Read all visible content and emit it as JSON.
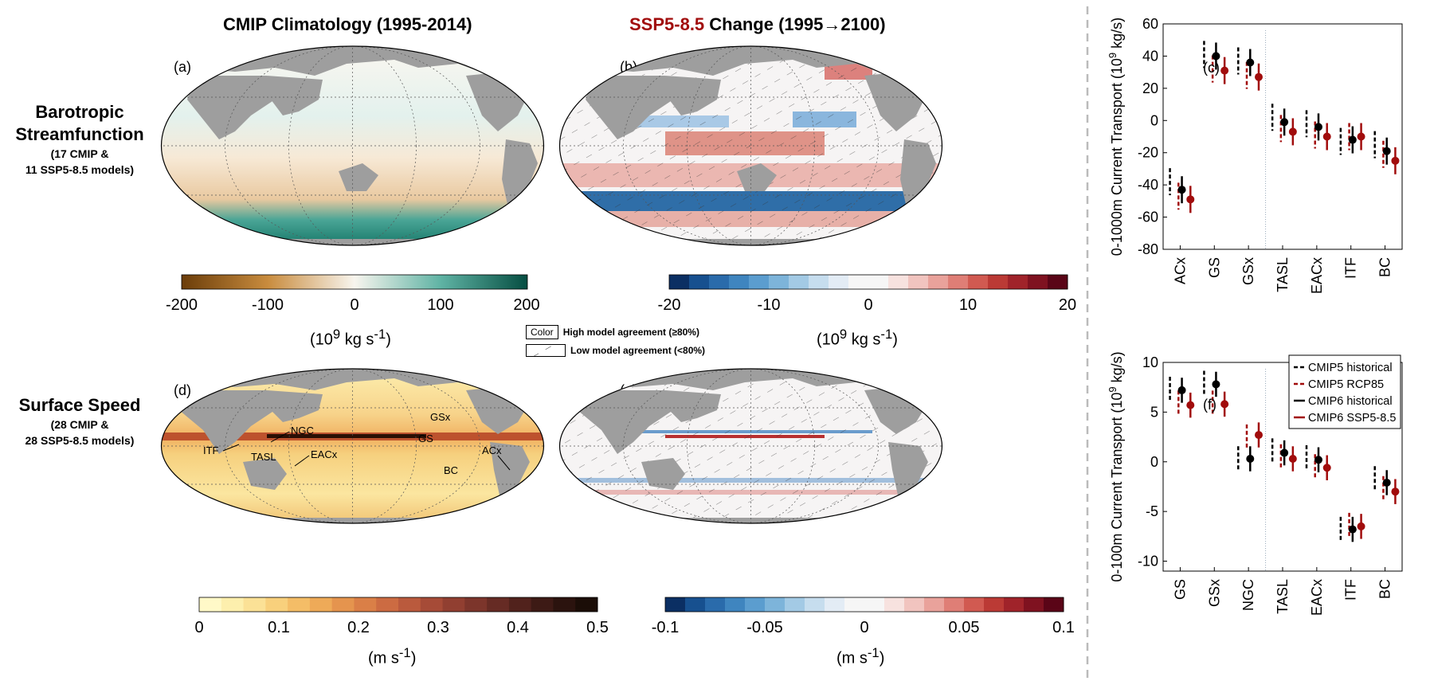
{
  "headers": {
    "col1": "CMIP Climatology (1995-2014)",
    "col2_prefix": "SSP5-8.5",
    "col2_suffix": " Change (1995→2100)"
  },
  "rows": {
    "row1": {
      "title_line1": "Barotropic",
      "title_line2": "Streamfunction",
      "sub_line1": "(17 CMIP &",
      "sub_line2": "11 SSP5-8.5 models)"
    },
    "row2": {
      "title_line1": "Surface Speed",
      "sub_line1": "(28 CMIP &",
      "sub_line2": "28 SSP5-8.5 models)"
    }
  },
  "panel_labels": {
    "a": "(a)",
    "b": "(b)",
    "c": "(c)",
    "d": "(d)",
    "e": "(e)",
    "f": "(f)"
  },
  "map_labels": {
    "gsx": "GSx",
    "gs": "GS",
    "ngc": "NGC",
    "itf": "ITF",
    "tasl": "TASL",
    "eacx": "EACx",
    "bc": "BC",
    "acx": "ACx"
  },
  "colorbars": {
    "a": {
      "ticks": [
        "-200",
        "-100",
        "0",
        "100",
        "200"
      ],
      "unit_base": "(10",
      "unit_exp1": "9",
      "unit_mid": " kg s",
      "unit_exp2": "-1",
      "unit_end": ")"
    },
    "b": {
      "ticks": [
        "-20",
        "-10",
        "0",
        "10",
        "20"
      ],
      "unit_base": "(10",
      "unit_exp1": "9",
      "unit_mid": " kg s",
      "unit_exp2": "-1",
      "unit_end": ")"
    },
    "d": {
      "ticks": [
        "0",
        "0.1",
        "0.2",
        "0.3",
        "0.4",
        "0.5"
      ],
      "unit_base": "(m s",
      "unit_exp": "-1",
      "unit_end": ")"
    },
    "e": {
      "ticks": [
        "-0.1",
        "-0.05",
        "0",
        "0.05",
        "0.1"
      ],
      "unit_base": "(m s",
      "unit_exp": "-1",
      "unit_end": ")"
    }
  },
  "agreement_legend": {
    "color_box": "Color",
    "high": "High model agreement (≥80%)",
    "low": "Low model agreement (<80%)"
  },
  "colors": {
    "historical": "#000000",
    "future": "#a10c0c",
    "land": "#9e9e9e"
  },
  "chart_data": [
    {
      "type": "scatter",
      "panel": "(c)",
      "ylabel": "0-1000m Current Transport (10^9 kg/s)",
      "ylim": [
        -80,
        60
      ],
      "yticks": [
        "60",
        "40",
        "20",
        "0",
        "-20",
        "-40",
        "-60",
        "-80"
      ],
      "categories": [
        "ACx",
        "GS",
        "GSx",
        "TASL",
        "EACx",
        "ITF",
        "BC"
      ],
      "series": [
        {
          "name": "CMIP5 historical",
          "values": [
            -38,
            41,
            37,
            2,
            -2,
            -13,
            -15
          ]
        },
        {
          "name": "CMIP5 RCP85",
          "values": [
            -47,
            32,
            28,
            -5,
            -9,
            -10,
            -21
          ]
        },
        {
          "name": "CMIP6 historical",
          "values": [
            -43,
            40,
            36,
            -1,
            -4,
            -12,
            -19
          ]
        },
        {
          "name": "CMIP6 SSP5-8.5",
          "values": [
            -49,
            31,
            27,
            -7,
            -10,
            -10,
            -25
          ]
        }
      ]
    },
    {
      "type": "scatter",
      "panel": "(f)",
      "ylabel": "0-100m Current Transport (10^9 kg/s)",
      "ylim": [
        -11,
        10
      ],
      "yticks": [
        "10",
        "5",
        "0",
        "-5",
        "-10"
      ],
      "categories": [
        "GS",
        "GSx",
        "NGC",
        "TASL",
        "EACx",
        "ITF",
        "BC"
      ],
      "series": [
        {
          "name": "CMIP5 historical",
          "values": [
            7.3,
            7.9,
            0.3,
            1.1,
            0.4,
            -6.8,
            -1.7
          ]
        },
        {
          "name": "CMIP5 RCP85",
          "values": [
            5.9,
            5.9,
            2.5,
            0.5,
            -0.5,
            -6.4,
            -2.7
          ]
        },
        {
          "name": "CMIP6 historical",
          "values": [
            7.2,
            7.8,
            0.3,
            0.9,
            0.2,
            -6.8,
            -2.1
          ]
        },
        {
          "name": "CMIP6 SSP5-8.5",
          "values": [
            5.7,
            5.8,
            2.7,
            0.3,
            -0.6,
            -6.5,
            -3.0
          ]
        }
      ]
    }
  ]
}
